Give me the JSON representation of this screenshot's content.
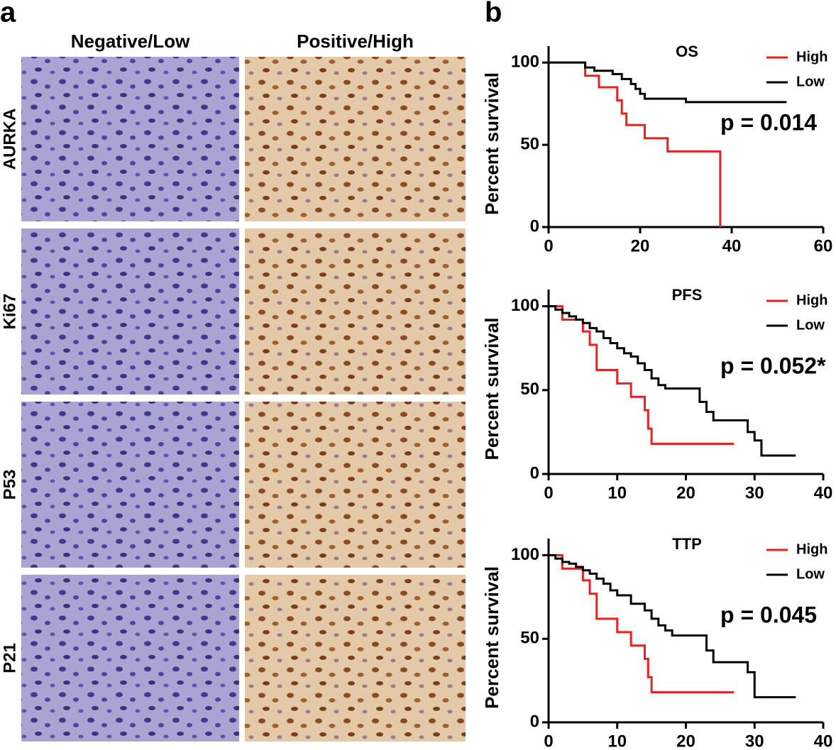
{
  "panel_a": {
    "label": "a",
    "columns": [
      "Negative/Low",
      "Positive/High"
    ],
    "rows": [
      "AURKA",
      "Ki67",
      "P53",
      "P21"
    ]
  },
  "panel_b": {
    "label": "b"
  },
  "chart_data": [
    {
      "type": "step",
      "title": "OS",
      "y_label": "Percent survival",
      "annotation": "p = 0.014",
      "xlim": [
        0,
        60
      ],
      "xticks": [
        0,
        20,
        40,
        60
      ],
      "ylim": [
        0,
        110
      ],
      "yticks": [
        0,
        50,
        100
      ],
      "legend": "top-right",
      "series": [
        {
          "name": "High",
          "color": "#e8201e",
          "x": [
            0,
            8,
            11,
            15,
            16,
            17,
            21,
            26,
            32,
            37.5
          ],
          "values": [
            100,
            92,
            85,
            77,
            69,
            62,
            54,
            46,
            46,
            0
          ]
        },
        {
          "name": "Low",
          "color": "#000000",
          "x": [
            0,
            8,
            10,
            14,
            16,
            18,
            19,
            20,
            21,
            30,
            52
          ],
          "values": [
            100,
            97,
            95,
            93,
            90,
            87,
            84,
            81,
            78,
            76,
            76
          ]
        }
      ]
    },
    {
      "type": "step",
      "title": "PFS",
      "y_label": "Percent survival",
      "annotation": "p = 0.052*",
      "xlim": [
        0,
        40
      ],
      "xticks": [
        0,
        10,
        20,
        30,
        40
      ],
      "ylim": [
        0,
        110
      ],
      "yticks": [
        0,
        50,
        100
      ],
      "legend": "top-right",
      "series": [
        {
          "name": "High",
          "color": "#e8201e",
          "x": [
            0,
            2,
            5,
            6,
            7,
            10,
            12,
            14,
            14.5,
            15,
            27
          ],
          "values": [
            100,
            92,
            85,
            77,
            62,
            54,
            46,
            38,
            27,
            18,
            18
          ]
        },
        {
          "name": "Low",
          "color": "#000000",
          "x": [
            0,
            1,
            2,
            3,
            4,
            5,
            6,
            7,
            8,
            9,
            10,
            11,
            12,
            13,
            14,
            15,
            16,
            17,
            19,
            22,
            23,
            24,
            26,
            29,
            30,
            31,
            36
          ],
          "values": [
            100,
            98,
            96,
            94,
            92,
            90,
            87,
            85,
            81,
            78,
            75,
            72,
            70,
            66,
            62,
            57,
            53,
            51,
            51,
            43,
            37,
            32,
            32,
            25,
            20,
            11,
            11
          ]
        }
      ]
    },
    {
      "type": "step",
      "title": "TTP",
      "y_label": "Percent survival",
      "annotation": "p = 0.045",
      "xlim": [
        0,
        40
      ],
      "xticks": [
        0,
        10,
        20,
        30,
        40
      ],
      "ylim": [
        0,
        110
      ],
      "yticks": [
        0,
        50,
        100
      ],
      "legend": "top-right",
      "series": [
        {
          "name": "High",
          "color": "#e8201e",
          "x": [
            0,
            2,
            5,
            6,
            7,
            10,
            12,
            14,
            14.5,
            15,
            27
          ],
          "values": [
            100,
            92,
            85,
            77,
            62,
            54,
            46,
            38,
            27,
            18,
            18
          ]
        },
        {
          "name": "Low",
          "color": "#000000",
          "x": [
            0,
            1,
            2,
            3,
            4,
            5,
            6,
            7,
            8,
            9,
            10,
            12,
            14,
            15,
            16,
            17,
            18,
            19,
            23,
            24,
            29,
            30,
            36
          ],
          "values": [
            100,
            98,
            96,
            95,
            93,
            91,
            89,
            86,
            83,
            79,
            76,
            71,
            67,
            62,
            58,
            55,
            52,
            52,
            43,
            36,
            30,
            15,
            15
          ]
        }
      ]
    }
  ]
}
